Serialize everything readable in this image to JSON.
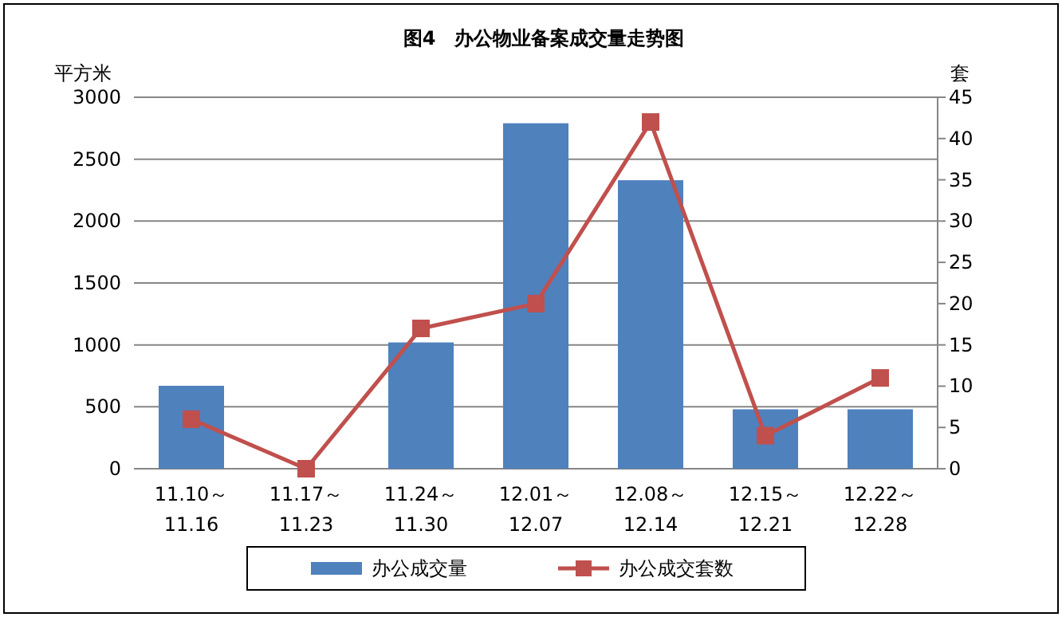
{
  "chart_data": {
    "type": "bar",
    "title": "图4　办公物业备案成交量走势图",
    "ylabel": "平方米",
    "y2label": "套",
    "categories": [
      "11.10～11.16",
      "11.17～11.23",
      "11.24～11.30",
      "12.01～12.07",
      "12.08～12.14",
      "12.15～12.21",
      "12.22～12.28"
    ],
    "series": [
      {
        "name": "办公成交量",
        "color": "#4f81bd",
        "values": [
          670,
          0,
          1020,
          2790,
          2330,
          480,
          480
        ]
      },
      {
        "name": "办公成交套数",
        "type": "line",
        "axis": "y2",
        "color": "#c0504d",
        "marker": "square",
        "values": [
          6,
          0,
          17,
          20,
          42,
          4,
          11
        ]
      }
    ],
    "ylim": [
      0,
      3000
    ],
    "yticks": [
      0,
      500,
      1000,
      1500,
      2000,
      2500,
      3000
    ],
    "y2lim": [
      0,
      45
    ],
    "y2ticks": [
      0,
      5,
      10,
      15,
      20,
      25,
      30,
      35,
      40,
      45
    ],
    "grid": "y",
    "legend": "bottom"
  }
}
